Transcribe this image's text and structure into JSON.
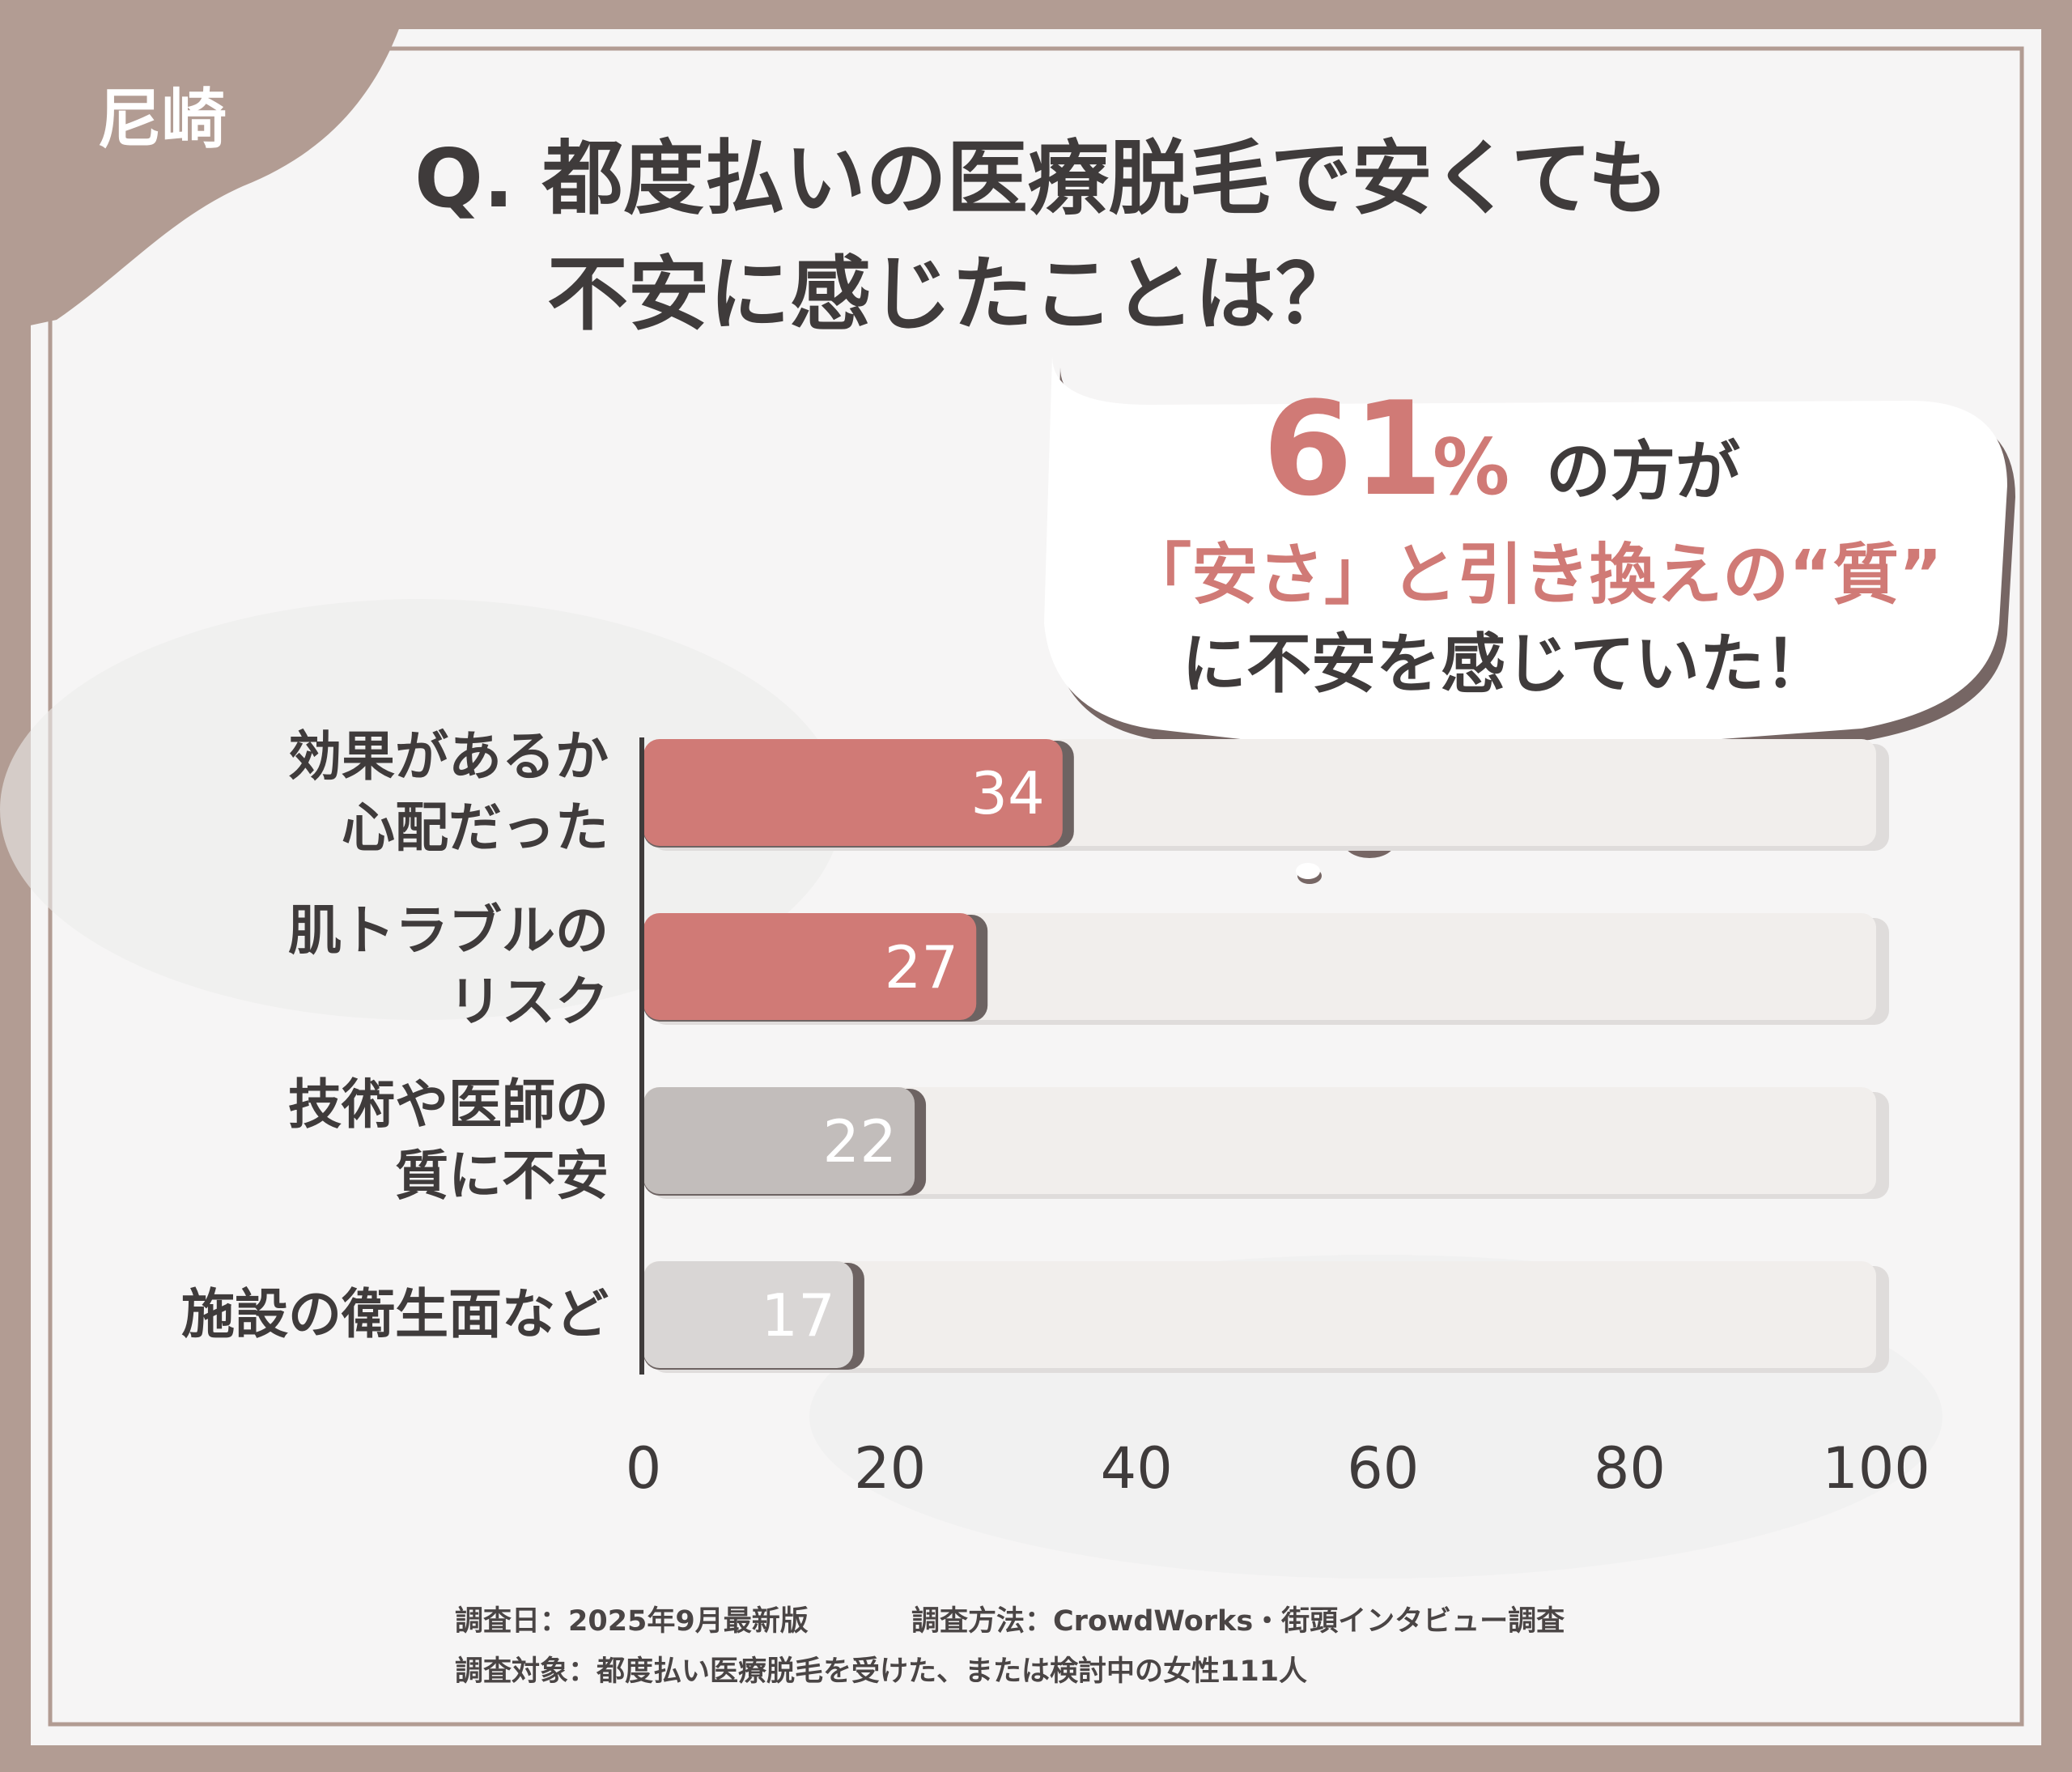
{
  "badge": {
    "text": "尼崎"
  },
  "question": {
    "line1": "Q. 都度払いの医療脱毛で安くても",
    "line2": "不安に感じたことは？"
  },
  "callout": {
    "percent": "61",
    "percent_sign": "%",
    "suffix": "の方が",
    "line2": "「安さ」と引き換えの“質”",
    "line3": "に不安を感じていた！"
  },
  "chart_data": {
    "type": "bar",
    "orientation": "horizontal",
    "categories": [
      [
        "効果があるか",
        "心配だった"
      ],
      [
        "肌トラブルの",
        "リスク"
      ],
      [
        "技術や医師の",
        "質に不安"
      ],
      [
        "施設の衛生面など"
      ]
    ],
    "values": [
      34,
      27,
      22,
      17
    ],
    "value_labels": [
      "34",
      "27",
      "22",
      "17"
    ],
    "xlim": [
      0,
      100
    ],
    "xticks": [
      "0",
      "20",
      "40",
      "60",
      "80",
      "100"
    ],
    "grid": false,
    "colors": [
      "#d07a76",
      "#d07a76",
      "#c2bdbb",
      "#d9d6d5"
    ]
  },
  "footer": {
    "date": "調査日：2025年9月最新版",
    "method": "調査方法：CrowdWorks・街頭インタビュー調査",
    "target": "調査対象：都度払い医療脱毛を受けた、または検討中の女性111人"
  },
  "colors": {
    "frame": "#b29c93",
    "card": "#f6f5f5",
    "accent": "#d07a76",
    "text": "#3f3b3b",
    "track": "#f1eeec"
  }
}
